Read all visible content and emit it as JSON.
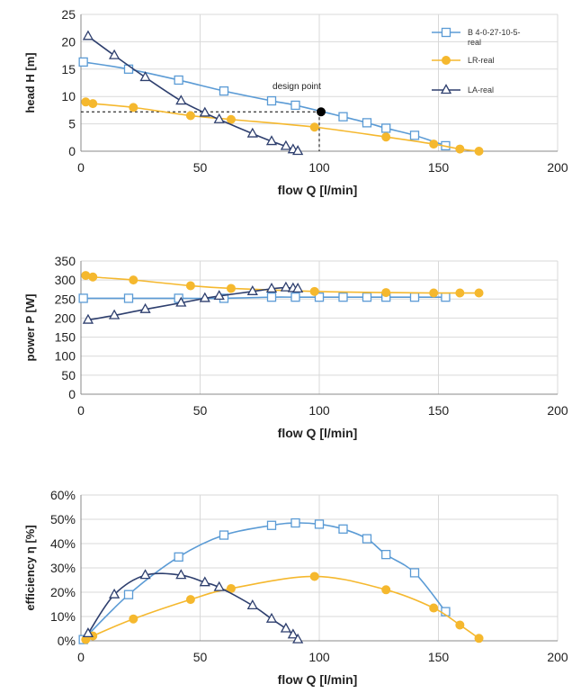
{
  "colors": {
    "B": "#5b9bd5",
    "LR": "#f5b82e",
    "LA": "#2e3f6e",
    "grid": "#d9d9d9",
    "axis": "#888888"
  },
  "chart_data": [
    {
      "type": "line",
      "xlabel": "flow Q [l/min]",
      "ylabel": "head H [m]",
      "xlim": [
        0,
        200
      ],
      "ylim": [
        0,
        25
      ],
      "xticks": [
        0,
        50,
        100,
        150,
        200
      ],
      "yticks": [
        0,
        5,
        10,
        15,
        20,
        25
      ],
      "ytick_labels": [
        "0",
        "5",
        "10",
        "15",
        "20",
        "25"
      ],
      "grid": true,
      "legend_position": "top-right",
      "series": [
        {
          "name": "B 4-0-27-10-5-real",
          "color_key": "B",
          "marker": "square",
          "x": [
            1,
            20,
            41,
            60,
            80,
            90,
            110,
            120,
            128,
            140,
            153
          ],
          "y": [
            16.3,
            15,
            13,
            11,
            9.2,
            8.4,
            6.3,
            5.2,
            4.2,
            2.9,
            1
          ]
        },
        {
          "name": "LR-real",
          "color_key": "LR",
          "marker": "circle",
          "x": [
            2,
            5,
            22,
            46,
            63,
            98,
            128,
            148,
            159,
            167
          ],
          "y": [
            9,
            8.7,
            8,
            6.5,
            5.8,
            4.4,
            2.6,
            1.3,
            0.4,
            0
          ]
        },
        {
          "name": "LA-real",
          "color_key": "LA",
          "marker": "triangle",
          "x": [
            3,
            14,
            27,
            42,
            52,
            58,
            72,
            80,
            86,
            89,
            91
          ],
          "y": [
            21,
            17.5,
            13.5,
            9.2,
            7,
            5.8,
            3.2,
            1.8,
            0.9,
            0.3,
            0
          ]
        }
      ],
      "annotations": [
        {
          "text": "design point",
          "x": 100,
          "y": 7.2
        }
      ]
    },
    {
      "type": "line",
      "xlabel": "flow Q [l/min]",
      "ylabel": "power P [W]",
      "xlim": [
        0,
        200
      ],
      "ylim": [
        0,
        350
      ],
      "xticks": [
        0,
        50,
        100,
        150,
        200
      ],
      "yticks": [
        0,
        50,
        100,
        150,
        200,
        250,
        300,
        350
      ],
      "ytick_labels": [
        "0",
        "50",
        "100",
        "150",
        "200",
        "250",
        "300",
        "350"
      ],
      "grid": true,
      "series": [
        {
          "name": "B 4-0-27-10-5-real",
          "color_key": "B",
          "marker": "square",
          "x": [
            1,
            20,
            41,
            60,
            80,
            90,
            100,
            110,
            120,
            128,
            140,
            153
          ],
          "y": [
            252,
            252,
            252,
            252,
            255,
            255,
            255,
            255,
            255,
            255,
            255,
            255
          ]
        },
        {
          "name": "LR-real",
          "color_key": "LR",
          "marker": "circle",
          "x": [
            2,
            5,
            22,
            46,
            63,
            98,
            128,
            148,
            159,
            167
          ],
          "y": [
            312,
            308,
            300,
            285,
            278,
            270,
            267,
            266,
            266,
            266
          ]
        },
        {
          "name": "LA-real",
          "color_key": "LA",
          "marker": "triangle",
          "x": [
            3,
            14,
            27,
            42,
            52,
            58,
            72,
            80,
            86,
            89,
            91
          ],
          "y": [
            195,
            207,
            223,
            240,
            252,
            258,
            270,
            277,
            280,
            278,
            277
          ]
        }
      ]
    },
    {
      "type": "line",
      "xlabel": "flow Q [l/min]",
      "ylabel": "efficiency η [%]",
      "xlim": [
        0,
        200
      ],
      "ylim": [
        0,
        60
      ],
      "xticks": [
        0,
        50,
        100,
        150,
        200
      ],
      "yticks": [
        0,
        10,
        20,
        30,
        40,
        50,
        60
      ],
      "ytick_labels": [
        "0%",
        "10%",
        "20%",
        "30%",
        "40%",
        "50%",
        "60%"
      ],
      "grid": true,
      "series": [
        {
          "name": "B 4-0-27-10-5-real",
          "color_key": "B",
          "marker": "square",
          "x": [
            1,
            20,
            41,
            60,
            80,
            90,
            100,
            110,
            120,
            128,
            140,
            153
          ],
          "y": [
            0.5,
            19,
            34.5,
            43.5,
            47.5,
            48.5,
            48,
            46,
            42,
            35.5,
            28,
            12
          ]
        },
        {
          "name": "LR-real",
          "color_key": "LR",
          "marker": "circle",
          "x": [
            2,
            5,
            22,
            46,
            63,
            98,
            128,
            148,
            159,
            167
          ],
          "y": [
            0.5,
            2,
            9,
            17,
            21.5,
            26.5,
            21,
            13.5,
            6.5,
            1
          ]
        },
        {
          "name": "LA-real",
          "color_key": "LA",
          "marker": "triangle",
          "x": [
            3,
            14,
            27,
            42,
            52,
            58,
            72,
            80,
            86,
            89,
            91
          ],
          "y": [
            3,
            19,
            27,
            27,
            24,
            22,
            14.5,
            9,
            5,
            2.5,
            0.5
          ]
        }
      ]
    }
  ]
}
